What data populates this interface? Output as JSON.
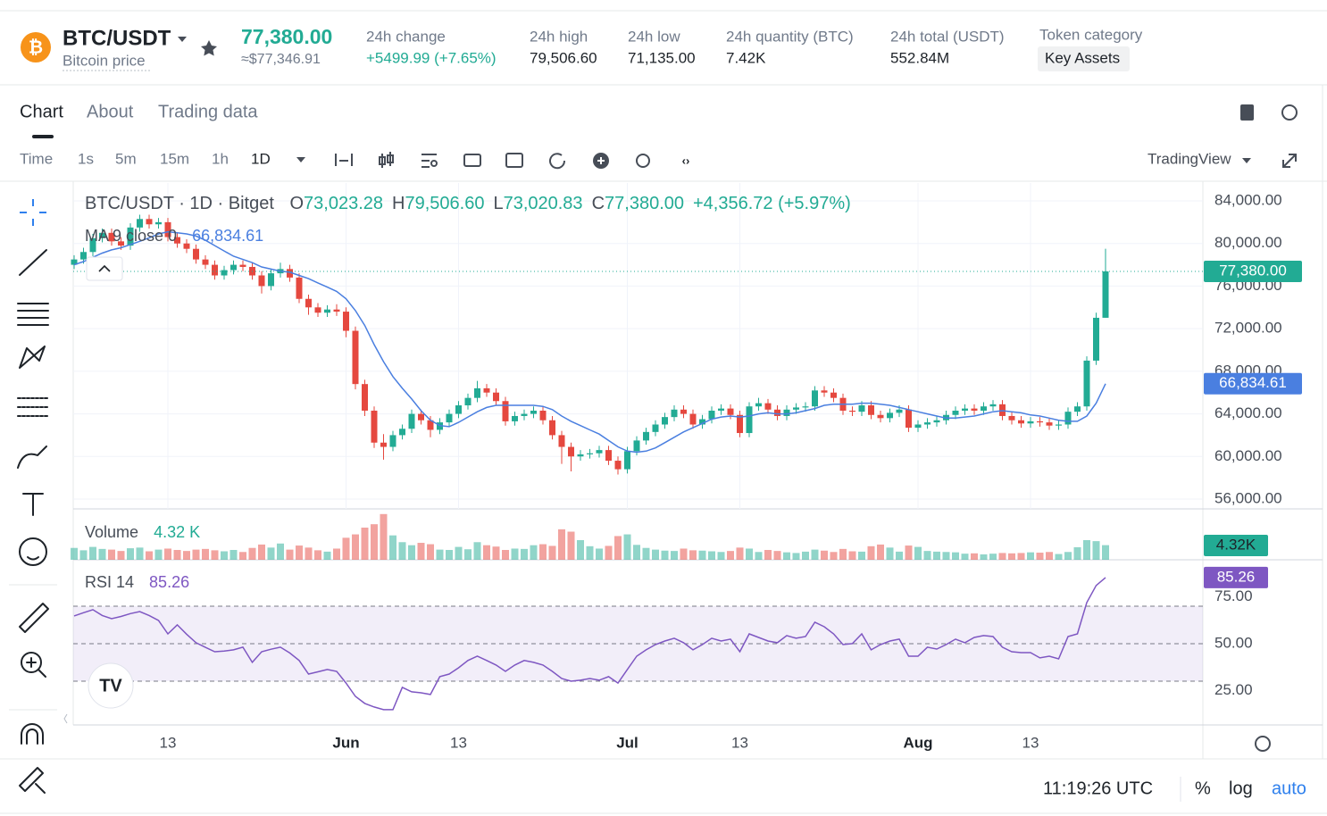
{
  "header": {
    "pair": "BTC/USDT",
    "subtitle": "Bitcoin price",
    "price": "77,380.00",
    "approx_price": "≈$77,346.91",
    "stats": [
      {
        "label": "24h change",
        "value": "+5499.99 (+7.65%)"
      },
      {
        "label": "24h high",
        "value": "79,506.60"
      },
      {
        "label": "24h low",
        "value": "71,135.00"
      },
      {
        "label": "24h quantity (BTC)",
        "value": "7.42K"
      },
      {
        "label": "24h total (USDT)",
        "value": "552.84M"
      }
    ],
    "token_category_label": "Token category",
    "token_category": "Key Assets"
  },
  "tabs": [
    "Chart",
    "About",
    "Trading data"
  ],
  "toolbar": {
    "intervals": [
      "Time",
      "1s",
      "5m",
      "15m",
      "1h",
      "1D"
    ],
    "provider": "TradingView"
  },
  "chart_data": {
    "type": "candlestick",
    "title": "BTC/USDT · 1D · Bitget",
    "legend": [
      {
        "key": "O",
        "value": "73,023.28"
      },
      {
        "key": "H",
        "value": "79,506.60"
      },
      {
        "key": "L",
        "value": "73,020.83"
      },
      {
        "key": "C",
        "value": "77,380.00"
      }
    ],
    "change": "+4,356.72 (+5.97%)",
    "up_color": "#22ab94",
    "down_color": "#e5483f",
    "categories": [
      null,
      null,
      null,
      null,
      null,
      null,
      null,
      null,
      null,
      null,
      "13",
      null,
      null,
      null,
      null,
      null,
      null,
      null,
      null,
      null,
      null,
      null,
      null,
      null,
      null,
      null,
      null,
      null,
      null,
      "Jun",
      null,
      null,
      null,
      null,
      null,
      null,
      null,
      null,
      null,
      null,
      null,
      "13",
      null,
      null,
      null,
      null,
      null,
      null,
      null,
      null,
      null,
      null,
      null,
      null,
      null,
      null,
      null,
      null,
      null,
      "Jul",
      null,
      null,
      null,
      null,
      null,
      null,
      null,
      null,
      null,
      null,
      null,
      "13",
      null,
      null,
      null,
      null,
      null,
      null,
      null,
      null,
      null,
      null,
      null,
      null,
      null,
      null,
      null,
      null,
      null,
      null,
      "Aug",
      null,
      null,
      null,
      null,
      null,
      null,
      null,
      null,
      null,
      null,
      null,
      "13",
      null,
      null,
      null,
      null,
      null,
      null,
      null,
      null
    ],
    "open": [
      78000,
      78500,
      79200,
      80500,
      81000,
      80200,
      79800,
      81500,
      82300,
      81800,
      82000,
      80600,
      80000,
      79500,
      78500,
      78000,
      77000,
      77500,
      78000,
      77800,
      77000,
      76000,
      77200,
      77600,
      76800,
      74800,
      74000,
      73500,
      73800,
      73600,
      71800,
      66800,
      64300,
      61300,
      60900,
      62000,
      62600,
      64000,
      63400,
      62500,
      63200,
      64000,
      64800,
      65500,
      66400,
      66000,
      65200,
      63300,
      63800,
      64000,
      64300,
      63400,
      62000,
      60900,
      60000,
      60200,
      60300,
      60600,
      59600,
      58800,
      60500,
      61500,
      62300,
      63000,
      63700,
      64400,
      64000,
      63000,
      63500,
      64300,
      64500,
      63900,
      62200,
      64700,
      65000,
      64400,
      63800,
      64400,
      64600,
      64700,
      66200,
      66000,
      65500,
      64300,
      64200,
      64800,
      63900,
      63600,
      64100,
      64400,
      62700,
      63000,
      63200,
      63400,
      63900,
      64300,
      64500,
      64300,
      64700,
      64900,
      63800,
      63400,
      63100,
      63300,
      63200,
      62900,
      63000,
      64200,
      64700,
      69000,
      73023.28
    ],
    "high": [
      78900,
      79600,
      80900,
      81400,
      81400,
      80600,
      81900,
      82700,
      82700,
      82400,
      82400,
      81000,
      80400,
      79900,
      78900,
      78400,
      77900,
      78400,
      78400,
      78200,
      77400,
      77600,
      78200,
      78000,
      77200,
      75200,
      74400,
      74200,
      74300,
      74000,
      72200,
      67200,
      64700,
      62100,
      62400,
      63000,
      64400,
      64400,
      63800,
      63600,
      64400,
      65200,
      65900,
      67100,
      66800,
      66400,
      65600,
      64200,
      64400,
      64700,
      64700,
      63800,
      62400,
      61300,
      60600,
      60700,
      61000,
      61000,
      60000,
      60900,
      61900,
      62700,
      63400,
      64100,
      64800,
      64800,
      64400,
      63900,
      64700,
      64900,
      64900,
      64300,
      65100,
      65500,
      65400,
      64800,
      64800,
      65000,
      65100,
      66600,
      66600,
      66400,
      65900,
      64700,
      65200,
      65200,
      64300,
      64500,
      64800,
      64800,
      63400,
      63600,
      63800,
      64300,
      64700,
      64900,
      64900,
      65100,
      65300,
      65300,
      64200,
      63800,
      63700,
      63700,
      63600,
      63400,
      64600,
      65100,
      69400,
      73500,
      79506.6
    ],
    "low": [
      77600,
      78100,
      78800,
      80100,
      79800,
      79400,
      79400,
      81100,
      81400,
      81400,
      80200,
      79600,
      79100,
      78100,
      77600,
      76600,
      76600,
      77100,
      77400,
      76600,
      75300,
      75600,
      76800,
      76400,
      74400,
      73300,
      73100,
      73100,
      73200,
      71200,
      66300,
      63800,
      60800,
      59700,
      60500,
      61600,
      62200,
      63000,
      61800,
      62100,
      62800,
      63600,
      64400,
      65100,
      65600,
      64800,
      62900,
      62900,
      63400,
      63600,
      63000,
      61600,
      59300,
      58600,
      59600,
      59800,
      59900,
      59200,
      58300,
      58400,
      60100,
      61100,
      61900,
      62600,
      63300,
      63600,
      62600,
      62600,
      63100,
      63900,
      63500,
      61800,
      61800,
      64300,
      64000,
      63400,
      63400,
      64000,
      64200,
      64300,
      65600,
      65100,
      63900,
      63800,
      63800,
      63500,
      63200,
      63200,
      63700,
      62300,
      62300,
      62600,
      62800,
      63000,
      63500,
      63900,
      63900,
      63900,
      64300,
      63400,
      63000,
      62700,
      62700,
      62800,
      62500,
      62500,
      62600,
      63800,
      64300,
      68600,
      73020.83
    ],
    "close": [
      78500,
      79200,
      80500,
      81000,
      80200,
      79800,
      81500,
      82300,
      81800,
      82000,
      80600,
      80000,
      79500,
      78500,
      78000,
      77000,
      77500,
      78000,
      77800,
      77000,
      76000,
      77200,
      77600,
      76800,
      74800,
      74000,
      73500,
      73800,
      73600,
      71800,
      66800,
      64300,
      61300,
      60900,
      62000,
      62600,
      64000,
      63400,
      62500,
      63200,
      64000,
      64800,
      65500,
      66400,
      66000,
      65200,
      63300,
      63800,
      64000,
      64300,
      63400,
      62000,
      60900,
      60000,
      60200,
      60300,
      60600,
      59600,
      58800,
      60500,
      61500,
      62300,
      63000,
      63700,
      64400,
      64000,
      63000,
      63500,
      64300,
      64500,
      63900,
      62200,
      64700,
      65000,
      64400,
      63800,
      64400,
      64600,
      64700,
      66200,
      66000,
      65500,
      64300,
      64200,
      64800,
      63900,
      63600,
      64100,
      64400,
      62700,
      63000,
      63200,
      63400,
      63900,
      64300,
      64500,
      64300,
      64700,
      64900,
      63800,
      63400,
      63100,
      63300,
      63200,
      62900,
      63000,
      64200,
      64700,
      69000,
      73023,
      77380
    ],
    "last_close_label": "77,380.00",
    "ylim": [
      55077,
      85678
    ],
    "yticks": [
      {
        "value": 56000,
        "label": "56,000.00"
      },
      {
        "value": 60000,
        "label": "60,000.00"
      },
      {
        "value": 64000,
        "label": "64,000.00"
      },
      {
        "value": 68000,
        "label": "68,000.00"
      },
      {
        "value": 72000,
        "label": "72,000.00"
      },
      {
        "value": 76000,
        "label": "76,000.00"
      },
      {
        "value": 80000,
        "label": "80,000.00"
      },
      {
        "value": 84000,
        "label": "84,000.00"
      }
    ],
    "grid": true,
    "ma": {
      "name": "MA 9 close 0",
      "color": "#4a7fe0",
      "value_label": "66,834.61",
      "values": [
        78000,
        78300,
        78700,
        79100,
        79400,
        79600,
        79900,
        80200,
        80533,
        80900,
        81100,
        81000,
        80900,
        80700,
        80300,
        79800,
        79300,
        78800,
        78500,
        78200,
        77800,
        77600,
        77400,
        77300,
        77000,
        76700,
        76300,
        75900,
        75500,
        74800,
        73700,
        72300,
        70500,
        68900,
        67500,
        66400,
        65400,
        64300,
        63400,
        62900,
        62800,
        63200,
        63700,
        64200,
        64600,
        64800,
        64800,
        64800,
        64800,
        64800,
        64700,
        64400,
        63800,
        63300,
        62900,
        62500,
        62100,
        61500,
        60900,
        60500,
        60400,
        60500,
        60800,
        61300,
        61800,
        62300,
        62700,
        63100,
        63500,
        63700,
        63800,
        63700,
        63800,
        64000,
        64100,
        64000,
        64000,
        64100,
        64300,
        64500,
        64800,
        64900,
        64900,
        64900,
        65000,
        65000,
        64900,
        64800,
        64600,
        64400,
        64200,
        64000,
        63800,
        63600,
        63600,
        63700,
        63800,
        64000,
        64200,
        64300,
        64200,
        64100,
        63900,
        63800,
        63600,
        63400,
        63300,
        63300,
        63800,
        65000,
        66834.61
      ]
    },
    "volume": {
      "name": "Volume",
      "value_label": "4.32 K",
      "badge_label": "4.32K",
      "ylim": [
        0,
        14500
      ],
      "values": [
        3500,
        2800,
        3800,
        3200,
        3000,
        2600,
        3400,
        3600,
        2500,
        3000,
        3300,
        2900,
        2600,
        3000,
        3200,
        2800,
        2500,
        2900,
        2300,
        3500,
        4500,
        3600,
        4800,
        3000,
        4200,
        3600,
        2800,
        2400,
        3300,
        6500,
        7500,
        9500,
        10500,
        13500,
        7200,
        5200,
        4300,
        5000,
        4600,
        3000,
        2900,
        3800,
        3100,
        5200,
        4300,
        3900,
        2900,
        3300,
        3200,
        4300,
        4600,
        4100,
        9000,
        8300,
        5800,
        4000,
        3300,
        4100,
        7000,
        7500,
        4400,
        3500,
        3000,
        2700,
        2600,
        3300,
        2800,
        2700,
        2500,
        2300,
        2600,
        3600,
        3300,
        2300,
        2900,
        2600,
        2200,
        2000,
        2400,
        3000,
        2700,
        2300,
        3200,
        2500,
        2400,
        4000,
        4500,
        3600,
        2400,
        4200,
        3800,
        2600,
        2400,
        2300,
        2200,
        1800,
        1900,
        1600,
        1800,
        2000,
        1900,
        2000,
        2200,
        2100,
        2300,
        1700,
        2300,
        3700,
        5800,
        5500,
        4320
      ]
    },
    "rsi": {
      "name": "RSI 14",
      "color": "#7e57c2",
      "value_label": "85.26",
      "ylim": [
        7.6,
        93.3
      ],
      "yticks": [
        {
          "value": 25,
          "label": "25.00"
        },
        {
          "value": 50,
          "label": "50.00"
        },
        {
          "value": 75,
          "label": "75.00"
        }
      ],
      "band": [
        30,
        70
      ],
      "middle": 50,
      "values": [
        64.8,
        66.5,
        68.1,
        65,
        63.3,
        64.5,
        66,
        67.1,
        65,
        62.4,
        55.2,
        60,
        55,
        50.5,
        48,
        45.7,
        46,
        46.7,
        48.1,
        40,
        45.7,
        47,
        48.1,
        45,
        41,
        33.8,
        35,
        36.2,
        35.2,
        29,
        21.9,
        18.1,
        16.2,
        14.8,
        14.8,
        26.7,
        24.3,
        23.8,
        22.9,
        32.4,
        33.8,
        37.1,
        41,
        43.3,
        41,
        38.6,
        35.2,
        38.6,
        41,
        40,
        38.6,
        35.2,
        31.4,
        30,
        30.5,
        31.4,
        30.5,
        32.4,
        29,
        36.2,
        43.3,
        46.7,
        49.5,
        51.4,
        52.9,
        50.5,
        46.7,
        49.5,
        52.9,
        51.4,
        52.4,
        45.7,
        55.2,
        53.3,
        51.4,
        50.5,
        54.3,
        52.9,
        53.8,
        61.4,
        59,
        55.2,
        49.5,
        50,
        55.2,
        46.7,
        49.5,
        51.4,
        52.4,
        43.3,
        43.3,
        48.1,
        47.1,
        49.5,
        52.4,
        50.5,
        53.3,
        54.3,
        53.8,
        48.1,
        45.7,
        45.2,
        45.2,
        42.4,
        43.3,
        41.9,
        53.8,
        55.2,
        71.9,
        81,
        85.26
      ]
    }
  },
  "footer": {
    "time": "11:19:26 UTC",
    "percent": "%",
    "log": "log",
    "auto": "auto"
  }
}
